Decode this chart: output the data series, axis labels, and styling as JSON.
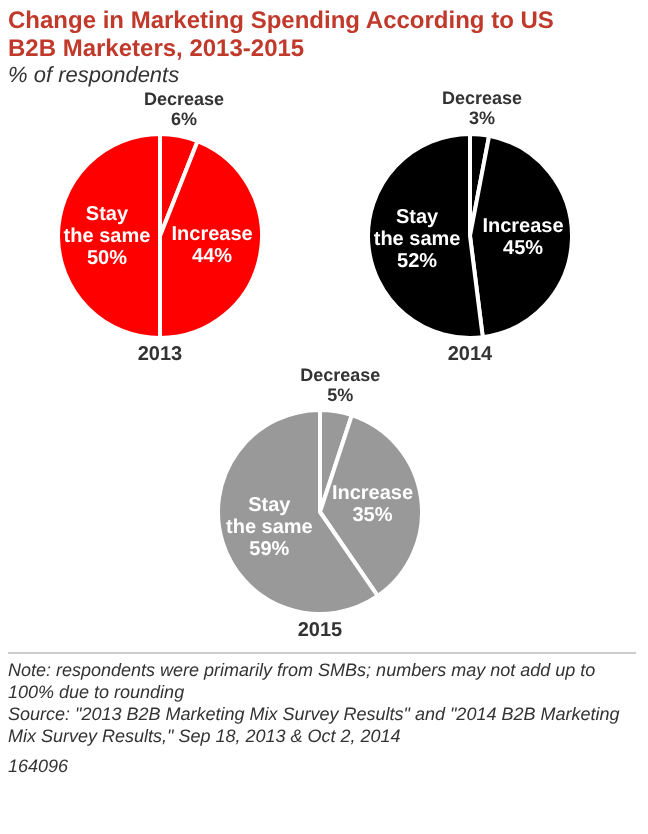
{
  "chart_data": [
    {
      "type": "pie",
      "title": "Change in Marketing Spending According to US B2B Marketers, 2013-2015",
      "subtitle": "% of respondents",
      "xlabel": "2013",
      "categories": [
        "Decrease",
        "Increase",
        "Stay the same"
      ],
      "values": [
        6,
        44,
        50
      ],
      "value_labels": [
        "6%",
        "44%",
        "50%"
      ],
      "colors": [
        "#ff0000",
        "#ff0000",
        "#ff0000"
      ]
    },
    {
      "type": "pie",
      "xlabel": "2014",
      "categories": [
        "Decrease",
        "Increase",
        "Stay the same"
      ],
      "values": [
        3,
        45,
        52
      ],
      "value_labels": [
        "3%",
        "45%",
        "52%"
      ],
      "colors": [
        "#000000",
        "#000000",
        "#000000"
      ]
    },
    {
      "type": "pie",
      "xlabel": "2015",
      "categories": [
        "Decrease",
        "Increase",
        "Stay the same"
      ],
      "values": [
        5,
        35,
        59
      ],
      "value_labels": [
        "5%",
        "35%",
        "59%"
      ],
      "colors": [
        "#999999",
        "#999999",
        "#999999"
      ],
      "annotations": [
        "Note: respondents were primarily from SMBs; numbers may not add up to 100% due to rounding",
        "Source: \"2013 B2B Marketing Mix Survey Results\" and \"2014 B2B Marketing Mix Survey Results,\" Sep 18, 2013 & Oct 2, 2014",
        "164096"
      ]
    }
  ]
}
